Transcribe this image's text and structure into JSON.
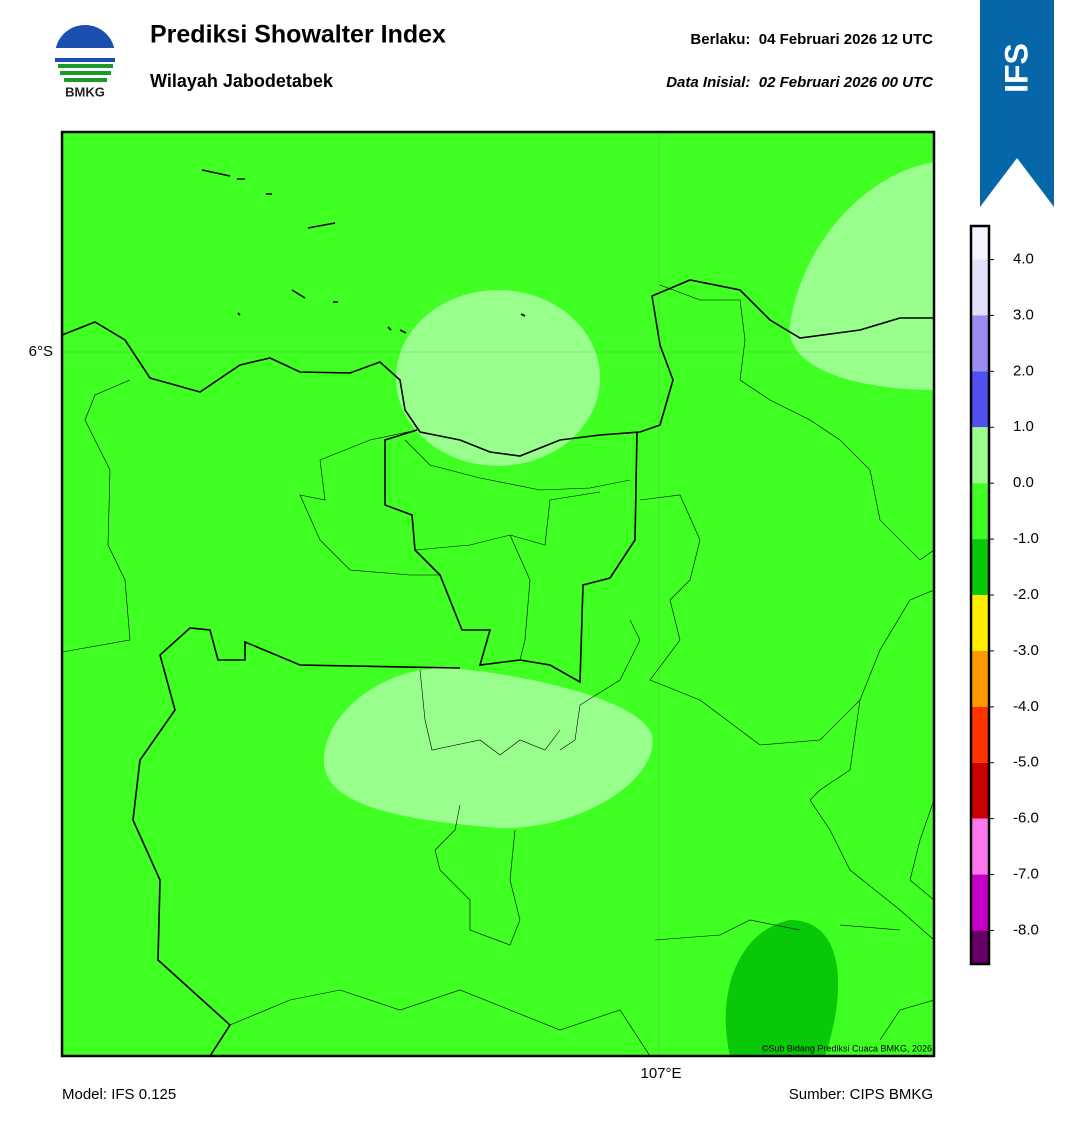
{
  "header": {
    "title": "Prediksi Showalter Index",
    "subtitle": "Wilayah Jabodetabek",
    "valid": "Berlaku:  04 Februari 2026 12 UTC",
    "init": "Data Inisial:  02 Februari 2026 00 UTC",
    "logo": "BMKG",
    "badge": "IFS"
  },
  "map": {
    "lat_label": "6°S",
    "lon_label": "107°E",
    "credit": "©Sub Bidang Prediksi Cuaca BMKG, 2026"
  },
  "colorbar": {
    "lim": [
      -8.6,
      4.6
    ],
    "ticks": [
      {
        "value": 4,
        "label": "4.0"
      },
      {
        "value": 3,
        "label": "3.0"
      },
      {
        "value": 2,
        "label": "2.0"
      },
      {
        "value": 1,
        "label": "1.0"
      },
      {
        "value": 0,
        "label": "0.0"
      },
      {
        "value": -1,
        "label": "-1.0"
      },
      {
        "value": -2,
        "label": "-2.0"
      },
      {
        "value": -3,
        "label": "-3.0"
      },
      {
        "value": -4,
        "label": "-4.0"
      },
      {
        "value": -5,
        "label": "-5.0"
      },
      {
        "value": -6,
        "label": "-6.0"
      },
      {
        "value": -7,
        "label": "-7.0"
      },
      {
        "value": -8,
        "label": "-8.0"
      }
    ],
    "colors": [
      "#f4f4ff",
      "#e0e0f8",
      "#9c8cf2",
      "#5050ee",
      "#99ff8c",
      "#40ff22",
      "#08c808",
      "#ffee00",
      "#ff9900",
      "#ff3300",
      "#c80000",
      "#ff77ee",
      "#c800c8",
      "#660066"
    ]
  },
  "footer": {
    "model": "Model: IFS 0.125",
    "source": "Sumber: CIPS BMKG"
  }
}
